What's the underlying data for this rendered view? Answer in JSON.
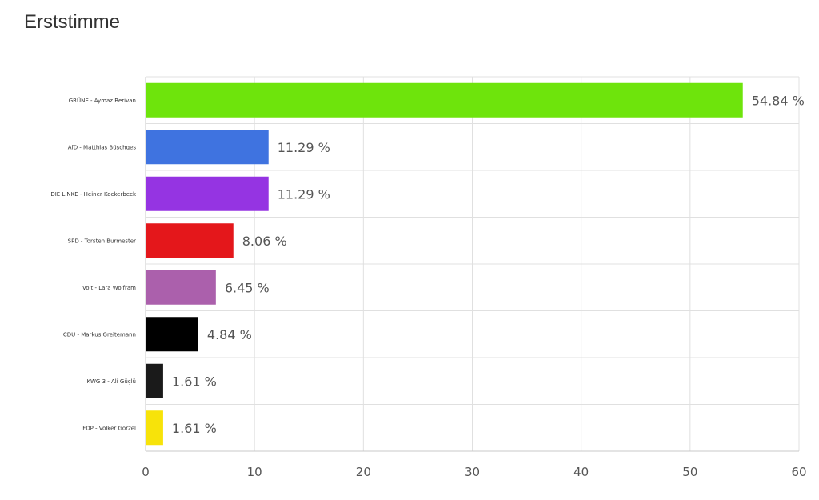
{
  "chart_data": {
    "type": "bar",
    "orientation": "horizontal",
    "title": "Erststimme",
    "categories": [
      "GRÜNE - Aymaz Berivan",
      "AfD - Matthias Büschges",
      "DIE LINKE - Heiner Kockerbeck",
      "SPD - Torsten Burmester",
      "Volt - Lara Wolfram",
      "CDU - Markus Greitemann",
      "KWG 3 - Ali Güçlü",
      "FDP - Volker Görzel"
    ],
    "values": [
      54.84,
      11.29,
      11.29,
      8.06,
      6.45,
      4.84,
      1.61,
      1.61
    ],
    "value_labels": [
      "54.84 %",
      "11.29 %",
      "11.29 %",
      "8.06 %",
      "6.45 %",
      "4.84 %",
      "1.61 %",
      "1.61 %"
    ],
    "colors": [
      "#6ee40c",
      "#3f73e0",
      "#9534e2",
      "#e4171b",
      "#ab60ac",
      "#000000",
      "#1a1a1a",
      "#f7e30a"
    ],
    "xlim": [
      0,
      60
    ],
    "x_ticks": [
      0,
      10,
      20,
      30,
      40,
      50,
      60
    ],
    "grid": true
  }
}
